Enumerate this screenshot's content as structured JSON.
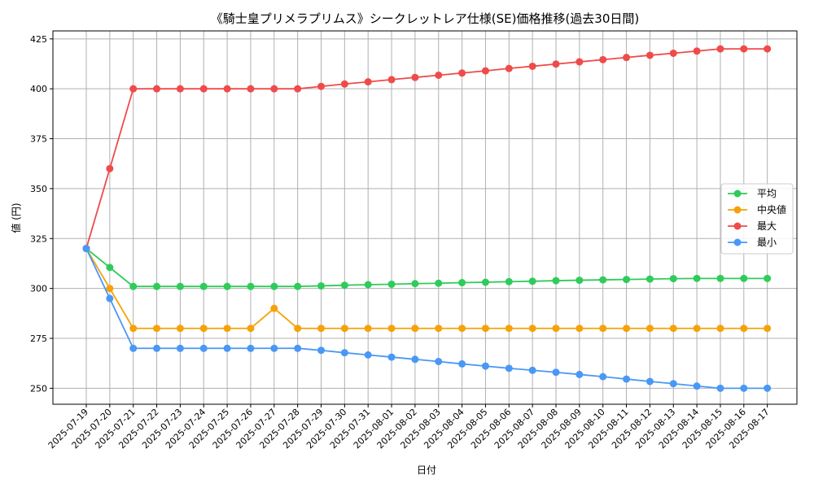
{
  "chart_data": {
    "type": "line",
    "title": "《騎士皇プリメラプリムス》シークレットレア仕様(SE)価格推移(過去30日間)",
    "xlabel": "日付",
    "ylabel": "値 (円)",
    "ylim": [
      242,
      429
    ],
    "yticks": [
      250,
      275,
      300,
      325,
      350,
      375,
      400,
      425
    ],
    "grid": true,
    "legend_position": "center-right",
    "categories": [
      "2025-07-19",
      "2025-07-20",
      "2025-07-21",
      "2025-07-22",
      "2025-07-23",
      "2025-07-24",
      "2025-07-25",
      "2025-07-26",
      "2025-07-27",
      "2025-07-28",
      "2025-07-29",
      "2025-07-30",
      "2025-07-31",
      "2025-08-01",
      "2025-08-02",
      "2025-08-03",
      "2025-08-04",
      "2025-08-05",
      "2025-08-06",
      "2025-08-07",
      "2025-08-08",
      "2025-08-09",
      "2025-08-10",
      "2025-08-11",
      "2025-08-12",
      "2025-08-13",
      "2025-08-14",
      "2025-08-15",
      "2025-08-16",
      "2025-08-17"
    ],
    "series": [
      {
        "name": "平均",
        "color": "#2ecc5a",
        "values": [
          320,
          310.5,
          301,
          301,
          301,
          301,
          301,
          301,
          301,
          301,
          301.3,
          301.6,
          301.9,
          302.1,
          302.4,
          302.6,
          302.9,
          303.1,
          303.4,
          303.6,
          303.9,
          304.1,
          304.3,
          304.5,
          304.7,
          304.9,
          305,
          305,
          305,
          305
        ]
      },
      {
        "name": "中央値",
        "color": "#f5a20a",
        "values": [
          320,
          300,
          280,
          280,
          280,
          280,
          280,
          280,
          290,
          280,
          280,
          280,
          280,
          280,
          280,
          280,
          280,
          280,
          280,
          280,
          280,
          280,
          280,
          280,
          280,
          280,
          280,
          280,
          280,
          280
        ]
      },
      {
        "name": "最大",
        "color": "#f04a4a",
        "values": [
          320,
          360,
          400,
          400,
          400,
          400,
          400,
          400,
          400,
          400,
          401.2,
          402.4,
          403.5,
          404.6,
          405.7,
          406.8,
          407.9,
          409,
          410.2,
          411.3,
          412.4,
          413.5,
          414.6,
          415.7,
          416.8,
          417.8,
          418.9,
          420,
          420,
          420
        ]
      },
      {
        "name": "最小",
        "color": "#4a98f5",
        "values": [
          320,
          295,
          270,
          270,
          270,
          270,
          270,
          270,
          270,
          270,
          269,
          267.8,
          266.7,
          265.6,
          264.5,
          263.4,
          262.2,
          261.1,
          260,
          259,
          258,
          256.9,
          255.8,
          254.6,
          253.4,
          252.3,
          251.1,
          250,
          250,
          250
        ]
      }
    ]
  }
}
